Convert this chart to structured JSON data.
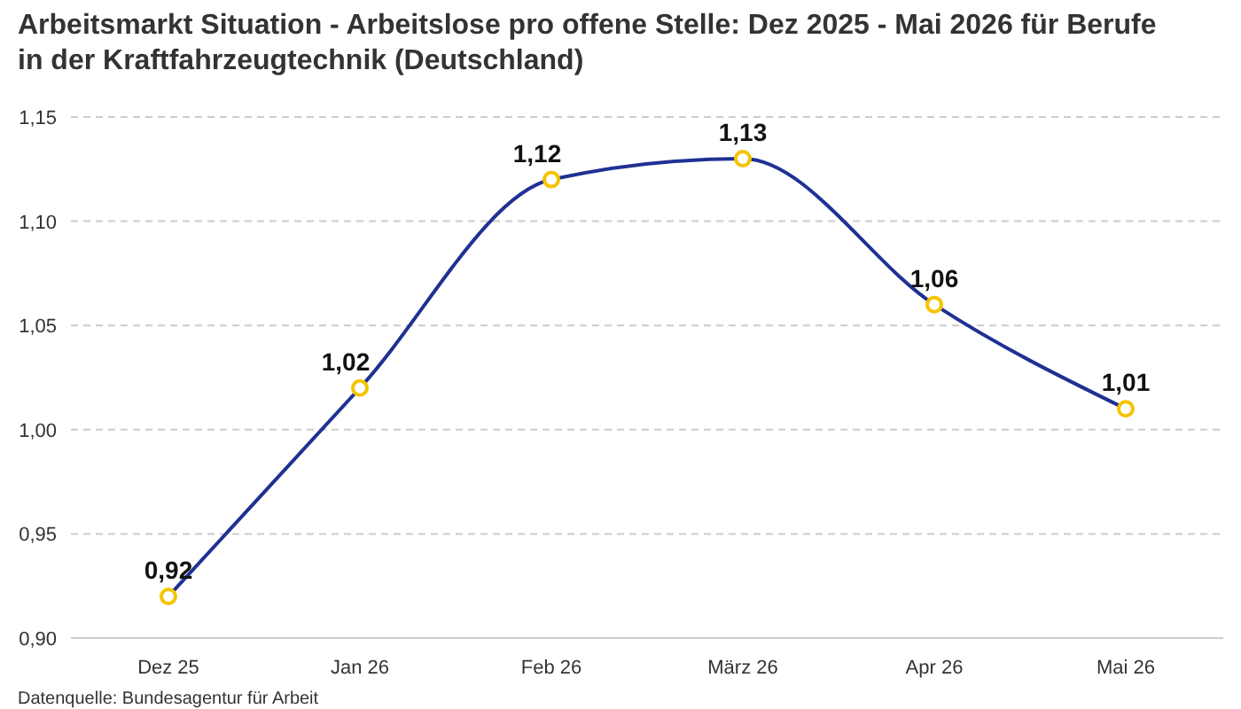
{
  "chart_data": {
    "type": "line",
    "title": "Arbeitsmarkt Situation - Arbeitslose pro offene Stelle: Dez 2025 - Mai 2026 für Berufe in der Kraftfahrzeugtechnik (Deutschland)",
    "categories": [
      "Dez 25",
      "Jan 26",
      "Feb 26",
      "März 26",
      "Apr 26",
      "Mai 26"
    ],
    "series": [
      {
        "color": "#1f3193",
        "values": [
          0.92,
          1.02,
          1.12,
          1.13,
          1.06,
          1.01
        ],
        "value_labels": [
          "0,92",
          "1,02",
          "1,12",
          "1,13",
          "1,06",
          "1,01"
        ]
      }
    ],
    "ylim": [
      0.9,
      1.15
    ],
    "yticks": [
      {
        "value": 0.9,
        "label": "0,90"
      },
      {
        "value": 0.95,
        "label": "0,95"
      },
      {
        "value": 1.0,
        "label": "1,00"
      },
      {
        "value": 1.05,
        "label": "1,05"
      },
      {
        "value": 1.1,
        "label": "1,10"
      },
      {
        "value": 1.15,
        "label": "1,15"
      }
    ],
    "grid": "y",
    "marker": "circle",
    "line_style": "solid",
    "annotations": [
      "Datenquelle: Bundesagentur für Arbeit"
    ]
  }
}
